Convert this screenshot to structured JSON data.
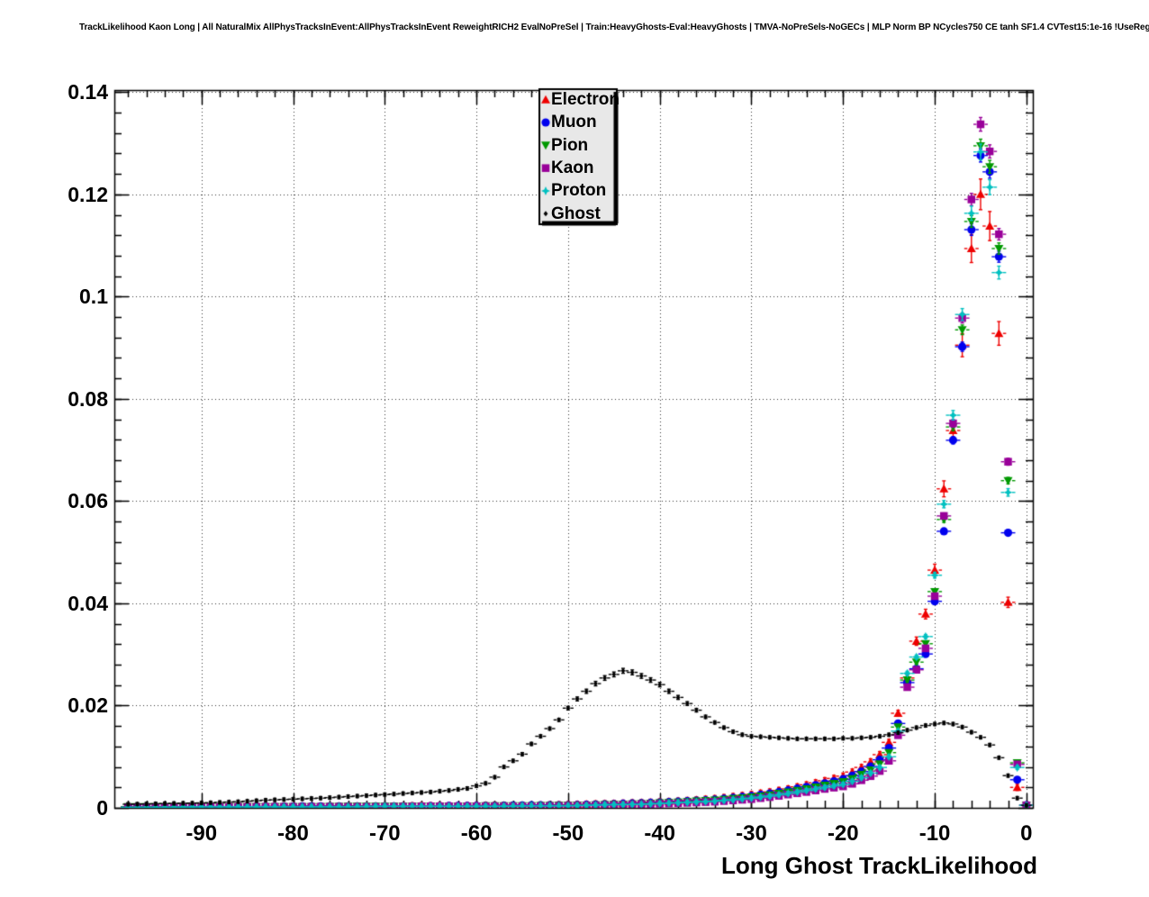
{
  "title": "TrackLikelihood Kaon Long | All NaturalMix AllPhysTracksInEvent:AllPhysTracksInEvent ReweightRICH2 EvalNoPreSel | Train:HeavyGhosts-Eval:HeavyGhosts | TMVA-NoPreSels-NoGECs | MLP Norm BP NCycles750 CE tanh SF1.4 CVTest15:1e-16 !UseReg",
  "chart_data": {
    "type": "scatter",
    "xlabel": "Long Ghost TrackLikelihood",
    "ylabel": "",
    "xlim": [
      -99.5,
      0.7
    ],
    "ylim": [
      0,
      0.1404
    ],
    "grid": true,
    "grid_style": "dotted",
    "x_ticks": [
      -90,
      -80,
      -70,
      -60,
      -50,
      -40,
      -30,
      -20,
      -10,
      0
    ],
    "x_tick_labels": [
      "-90",
      "-80",
      "-70",
      "-60",
      "-50",
      "-40",
      "-30",
      "-20",
      "-10",
      "0"
    ],
    "x_minor_step": 2,
    "y_ticks": [
      0,
      0.02,
      0.04,
      0.06,
      0.08,
      0.1,
      0.12,
      0.14
    ],
    "y_tick_labels": [
      "0",
      "0.02",
      "0.04",
      "0.06",
      "0.08",
      "0.1",
      "0.12",
      "0.14"
    ],
    "y_minor_step": 0.004,
    "legend_position": "top-center",
    "frame_color": "#000000",
    "background_color": "#ffffff",
    "legend_bg_color": "#e8e8e8",
    "x_shared": [
      -98,
      -94,
      -90,
      -86,
      -82,
      -78,
      -74,
      -70,
      -66,
      -62,
      -58,
      -54,
      -50,
      -46,
      -42,
      -38,
      -34,
      -30,
      -28,
      -26,
      -24,
      -22,
      -20,
      -19,
      -18,
      -17,
      -16,
      -15,
      -14,
      -13,
      -12,
      -11,
      -10,
      -9,
      -8,
      -7,
      -6,
      -5,
      -4,
      -3,
      -2,
      -1,
      0
    ],
    "series": [
      {
        "name": "Electron",
        "marker": "triangle-up",
        "color": "#ee0000",
        "err_rel": 0.025,
        "err_min": 0.0006,
        "size": 5,
        "y": [
          0.0002,
          0.0002,
          0.0002,
          0.0002,
          0.0003,
          0.0003,
          0.0003,
          0.0003,
          0.0004,
          0.0004,
          0.0005,
          0.0005,
          0.0006,
          0.0008,
          0.001,
          0.0013,
          0.0018,
          0.0026,
          0.0031,
          0.0037,
          0.0045,
          0.0053,
          0.0062,
          0.007,
          0.0079,
          0.009,
          0.0104,
          0.0128,
          0.0185,
          0.0254,
          0.0326,
          0.0379,
          0.0465,
          0.0624,
          0.0738,
          0.0905,
          0.1094,
          0.12,
          0.1138,
          0.0928,
          0.0402,
          0.004,
          0.0005
        ]
      },
      {
        "name": "Muon",
        "marker": "circle",
        "color": "#0000ee",
        "err_rel": 0.01,
        "err_min": 0.0004,
        "size": 5,
        "y": [
          0.0002,
          0.0002,
          0.0002,
          0.0002,
          0.0002,
          0.0003,
          0.0003,
          0.0003,
          0.0003,
          0.0004,
          0.0004,
          0.0005,
          0.0005,
          0.0007,
          0.0009,
          0.0012,
          0.0016,
          0.0023,
          0.0028,
          0.0034,
          0.0041,
          0.0048,
          0.0056,
          0.0063,
          0.0071,
          0.0081,
          0.0094,
          0.0117,
          0.0165,
          0.0245,
          0.0272,
          0.0301,
          0.0404,
          0.0541,
          0.0719,
          0.0902,
          0.1131,
          0.1276,
          0.1244,
          0.1078,
          0.0538,
          0.0055,
          0.0005
        ]
      },
      {
        "name": "Pion",
        "marker": "triangle-down",
        "color": "#009900",
        "err_rel": 0.01,
        "err_min": 0.0004,
        "size": 5,
        "y": [
          0.0002,
          0.0002,
          0.0002,
          0.0002,
          0.0002,
          0.0002,
          0.0003,
          0.0003,
          0.0003,
          0.0003,
          0.0004,
          0.0004,
          0.0005,
          0.0006,
          0.0008,
          0.0011,
          0.0015,
          0.0021,
          0.0025,
          0.0031,
          0.0037,
          0.0044,
          0.0051,
          0.0057,
          0.0065,
          0.0074,
          0.0086,
          0.0108,
          0.0158,
          0.025,
          0.0285,
          0.0321,
          0.0423,
          0.0564,
          0.0745,
          0.0935,
          0.1147,
          0.1295,
          0.1254,
          0.1094,
          0.064,
          0.0088,
          0.0005
        ]
      },
      {
        "name": "Kaon",
        "marker": "square",
        "color": "#990099",
        "err_rel": 0.01,
        "err_min": 0.0004,
        "size": 5,
        "y": [
          0.0001,
          0.0001,
          0.0001,
          0.0002,
          0.0002,
          0.0002,
          0.0002,
          0.0002,
          0.0003,
          0.0003,
          0.0003,
          0.0003,
          0.0004,
          0.0005,
          0.0007,
          0.0009,
          0.0012,
          0.0017,
          0.0021,
          0.0026,
          0.0031,
          0.0037,
          0.0042,
          0.0047,
          0.0054,
          0.0062,
          0.0072,
          0.0092,
          0.0142,
          0.0236,
          0.027,
          0.0312,
          0.0414,
          0.0571,
          0.0752,
          0.0958,
          0.119,
          0.1337,
          0.1284,
          0.1122,
          0.0677,
          0.0085,
          0.0005
        ]
      },
      {
        "name": "Proton",
        "marker": "star",
        "color": "#00c0c0",
        "err_rel": 0.012,
        "err_min": 0.0004,
        "size": 5,
        "y": [
          0.0001,
          0.0001,
          0.0002,
          0.0002,
          0.0002,
          0.0002,
          0.0002,
          0.0003,
          0.0003,
          0.0003,
          0.0003,
          0.0004,
          0.0004,
          0.0006,
          0.0007,
          0.001,
          0.0013,
          0.0019,
          0.0023,
          0.0028,
          0.0034,
          0.004,
          0.0046,
          0.0052,
          0.0059,
          0.0068,
          0.0079,
          0.01,
          0.015,
          0.0263,
          0.0295,
          0.0335,
          0.0455,
          0.0594,
          0.0768,
          0.0965,
          0.1163,
          0.1283,
          0.1214,
          0.1047,
          0.0617,
          0.0079,
          0.0005
        ]
      },
      {
        "name": "Ghost",
        "marker": "diamond",
        "color": "#000000",
        "err_rel": 0.018,
        "err_min": 0.0003,
        "size": 3,
        "points": [
          [
            -98,
            0.0007
          ],
          [
            -95,
            0.0008
          ],
          [
            -92,
            0.0009
          ],
          [
            -89,
            0.001
          ],
          [
            -86,
            0.0012
          ],
          [
            -83,
            0.0015
          ],
          [
            -80,
            0.0017
          ],
          [
            -77,
            0.0019
          ],
          [
            -74,
            0.0022
          ],
          [
            -71,
            0.0025
          ],
          [
            -68,
            0.0028
          ],
          [
            -65,
            0.0031
          ],
          [
            -63,
            0.0034
          ],
          [
            -61,
            0.0038
          ],
          [
            -59,
            0.0048
          ],
          [
            -58,
            0.006
          ],
          [
            -57,
            0.008
          ],
          [
            -56,
            0.0092
          ],
          [
            -55,
            0.0105
          ],
          [
            -54,
            0.0125
          ],
          [
            -53,
            0.014
          ],
          [
            -52,
            0.0155
          ],
          [
            -51,
            0.0172
          ],
          [
            -50,
            0.0195
          ],
          [
            -49,
            0.0213
          ],
          [
            -48,
            0.0228
          ],
          [
            -47,
            0.0243
          ],
          [
            -46,
            0.0254
          ],
          [
            -45,
            0.0261
          ],
          [
            -44,
            0.0268
          ],
          [
            -43,
            0.0265
          ],
          [
            -42,
            0.0258
          ],
          [
            -41,
            0.025
          ],
          [
            -40,
            0.0241
          ],
          [
            -39,
            0.0228
          ],
          [
            -38,
            0.0216
          ],
          [
            -37,
            0.0204
          ],
          [
            -36,
            0.0191
          ],
          [
            -35,
            0.0178
          ],
          [
            -34,
            0.0167
          ],
          [
            -33,
            0.0157
          ],
          [
            -32,
            0.0149
          ],
          [
            -31,
            0.0143
          ],
          [
            -30,
            0.014
          ],
          [
            -29,
            0.0139
          ],
          [
            -28,
            0.0138
          ],
          [
            -27,
            0.0137
          ],
          [
            -26,
            0.0136
          ],
          [
            -25,
            0.0135
          ],
          [
            -24,
            0.0135
          ],
          [
            -23,
            0.0135
          ],
          [
            -22,
            0.0135
          ],
          [
            -21,
            0.0135
          ],
          [
            -20,
            0.0136
          ],
          [
            -19,
            0.0136
          ],
          [
            -18,
            0.0137
          ],
          [
            -17,
            0.0138
          ],
          [
            -16,
            0.014
          ],
          [
            -15,
            0.0143
          ],
          [
            -14,
            0.0147
          ],
          [
            -13,
            0.0152
          ],
          [
            -12,
            0.0157
          ],
          [
            -11,
            0.0161
          ],
          [
            -10,
            0.0164
          ],
          [
            -9,
            0.0166
          ],
          [
            -8,
            0.0164
          ],
          [
            -7,
            0.0158
          ],
          [
            -6,
            0.0148
          ],
          [
            -5,
            0.0138
          ],
          [
            -4,
            0.0123
          ],
          [
            -3,
            0.0098
          ],
          [
            -2,
            0.0063
          ],
          [
            -1,
            0.0019
          ],
          [
            0,
            0.0005
          ]
        ]
      }
    ]
  }
}
